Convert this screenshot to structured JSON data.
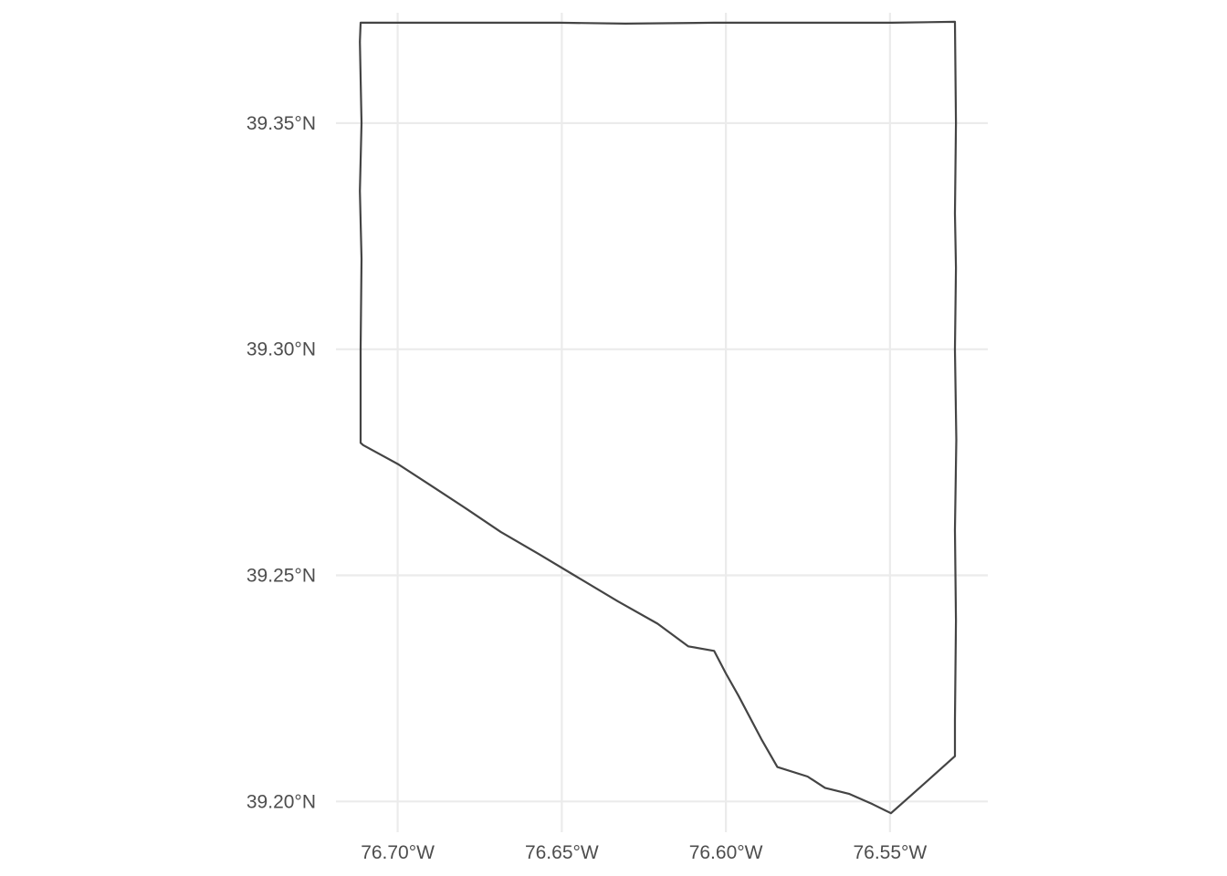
{
  "chart_data": {
    "type": "map",
    "projection": "geographic",
    "grid": true,
    "xlim": [
      -76.7188,
      -76.5202
    ],
    "ylim": [
      39.1932,
      39.3744
    ],
    "x_ticks": [
      {
        "value": -76.7,
        "label": "76.70°W"
      },
      {
        "value": -76.65,
        "label": "76.65°W"
      },
      {
        "value": -76.6,
        "label": "76.60°W"
      },
      {
        "value": -76.55,
        "label": "76.55°W"
      }
    ],
    "y_ticks": [
      {
        "value": 39.35,
        "label": "39.35°N"
      },
      {
        "value": 39.3,
        "label": "39.30°N"
      },
      {
        "value": 39.25,
        "label": "39.25°N"
      },
      {
        "value": 39.2,
        "label": "39.20°N"
      }
    ],
    "boundary": [
      [
        -76.7113,
        39.3722
      ],
      [
        -76.6829,
        39.3722
      ],
      [
        -76.6508,
        39.3722
      ],
      [
        -76.6306,
        39.372
      ],
      [
        -76.6036,
        39.3722
      ],
      [
        -76.5782,
        39.3722
      ],
      [
        -76.5494,
        39.3722
      ],
      [
        -76.5302,
        39.3724
      ],
      [
        -76.5299,
        39.35
      ],
      [
        -76.5302,
        39.33
      ],
      [
        -76.5299,
        39.318
      ],
      [
        -76.5302,
        39.3
      ],
      [
        -76.5298,
        39.28
      ],
      [
        -76.5302,
        39.26
      ],
      [
        -76.5299,
        39.24
      ],
      [
        -76.5302,
        39.218
      ],
      [
        -76.5302,
        39.21
      ],
      [
        -76.5367,
        39.2058
      ],
      [
        -76.5432,
        39.2016
      ],
      [
        -76.5497,
        39.1974
      ],
      [
        -76.5553,
        39.1994
      ],
      [
        -76.5625,
        39.2017
      ],
      [
        -76.5698,
        39.203
      ],
      [
        -76.5751,
        39.2055
      ],
      [
        -76.5843,
        39.2076
      ],
      [
        -76.5892,
        39.2138
      ],
      [
        -76.5961,
        39.2233
      ],
      [
        -76.6,
        39.2283
      ],
      [
        -76.6036,
        39.2333
      ],
      [
        -76.6115,
        39.2343
      ],
      [
        -76.6208,
        39.2393
      ],
      [
        -76.633,
        39.2443
      ],
      [
        -76.6457,
        39.2498
      ],
      [
        -76.657,
        39.2547
      ],
      [
        -76.6686,
        39.2596
      ],
      [
        -76.6788,
        39.2646
      ],
      [
        -76.6893,
        39.2696
      ],
      [
        -76.6999,
        39.2746
      ],
      [
        -76.7105,
        39.2788
      ],
      [
        -76.7113,
        39.2793
      ],
      [
        -76.7113,
        39.3
      ],
      [
        -76.711,
        39.32
      ],
      [
        -76.7115,
        39.335
      ],
      [
        -76.711,
        39.35
      ],
      [
        -76.7115,
        39.368
      ],
      [
        -76.7113,
        39.3722
      ]
    ]
  }
}
